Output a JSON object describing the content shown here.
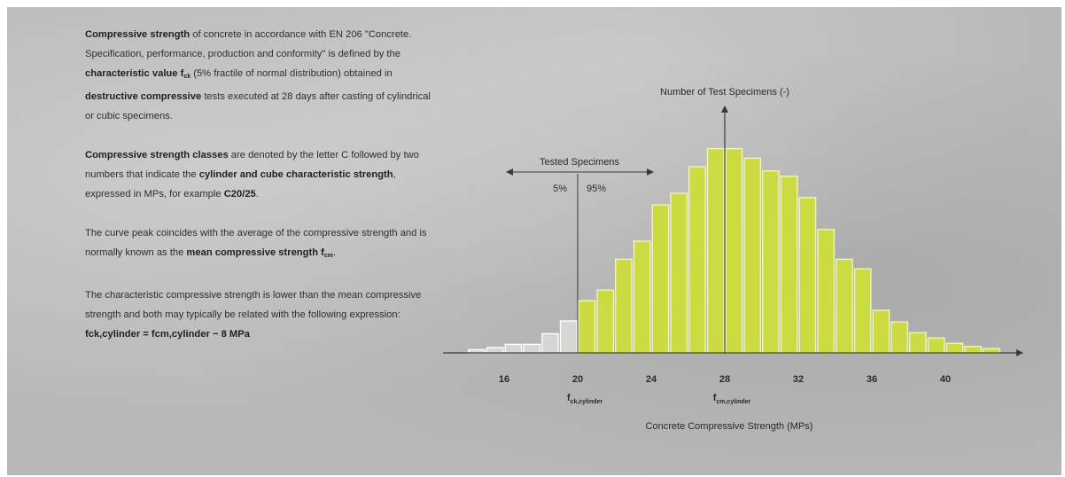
{
  "text": {
    "p1": {
      "a": "Compressive strength",
      "b": " of concrete in accordance with EN 206 \"Concrete. Specification, performance, production and conformity\" is defined by the ",
      "c": "characteristic value f",
      "c_sub": "ck",
      "d": " (5% fractile of normal distribution) obtained in ",
      "e": "destructive compressive",
      "f": " tests executed at 28 days after casting of cylindrical or cubic specimens."
    },
    "p2": {
      "a": "Compressive strength classes",
      "b": " are denoted by the letter C followed by two numbers that indicate the ",
      "c": "cylinder and cube characteristic strength",
      "d": ", expressed in MPs, for example ",
      "e": "C20/25",
      "f": "."
    },
    "p3": {
      "a": "The curve peak coincides with the average of the compressive strength and is normally known as the ",
      "b": "mean compressive strength f",
      "b_sub": "cm",
      "c": "."
    },
    "p4": {
      "a": "The characteristic compressive strength is lower than the mean compressive strength and both may typically be related with the following expression:"
    },
    "formula": "fck,cylinder = fcm,cylinder − 8 MPa"
  },
  "chart_data": {
    "type": "bar",
    "title": "",
    "ylabel": "Number of Test Specimens (-)",
    "xlabel": "Concrete Compressive Strength (MPs)",
    "xlim": [
      12,
      44
    ],
    "ylim": [
      0,
      20
    ],
    "x_ticks": [
      "16",
      "20",
      "24",
      "28",
      "32",
      "36",
      "40"
    ],
    "bin_width": 1,
    "bins": [
      {
        "x": 14.5,
        "v": 0.3
      },
      {
        "x": 15.5,
        "v": 0.5
      },
      {
        "x": 16.5,
        "v": 0.8
      },
      {
        "x": 17.5,
        "v": 0.8
      },
      {
        "x": 18.5,
        "v": 1.8
      },
      {
        "x": 19.5,
        "v": 3.0
      },
      {
        "x": 20.5,
        "v": 4.9
      },
      {
        "x": 21.5,
        "v": 5.9
      },
      {
        "x": 22.5,
        "v": 8.8
      },
      {
        "x": 23.5,
        "v": 10.5
      },
      {
        "x": 24.5,
        "v": 13.9
      },
      {
        "x": 25.5,
        "v": 15.0
      },
      {
        "x": 26.5,
        "v": 17.5
      },
      {
        "x": 27.5,
        "v": 19.2
      },
      {
        "x": 28.5,
        "v": 19.2
      },
      {
        "x": 29.5,
        "v": 18.3
      },
      {
        "x": 30.5,
        "v": 17.1
      },
      {
        "x": 31.5,
        "v": 16.6
      },
      {
        "x": 32.5,
        "v": 14.6
      },
      {
        "x": 33.5,
        "v": 11.6
      },
      {
        "x": 34.5,
        "v": 8.8
      },
      {
        "x": 35.5,
        "v": 7.9
      },
      {
        "x": 36.5,
        "v": 4.0
      },
      {
        "x": 37.5,
        "v": 2.9
      },
      {
        "x": 38.5,
        "v": 1.9
      },
      {
        "x": 39.5,
        "v": 1.4
      },
      {
        "x": 40.5,
        "v": 0.9
      },
      {
        "x": 41.5,
        "v": 0.6
      },
      {
        "x": 42.5,
        "v": 0.4
      }
    ],
    "fck_x": 20,
    "fcm_x": 28,
    "fck_label": "f",
    "fck_sub": "ck,cylinder",
    "fcm_label": "f",
    "fcm_sub": "cm,cylinder",
    "tested_label": "Tested Specimens",
    "pct_low": "5%",
    "pct_high": "95%",
    "colors": {
      "bar_fill": "#ccdb42",
      "bar_stroke": "#eef5c0",
      "bar_faded_fill": "#d6d6d2",
      "bar_faded_stroke": "#ffffff",
      "axis": "#3a3a3a",
      "text": "#2a2a2a"
    }
  }
}
